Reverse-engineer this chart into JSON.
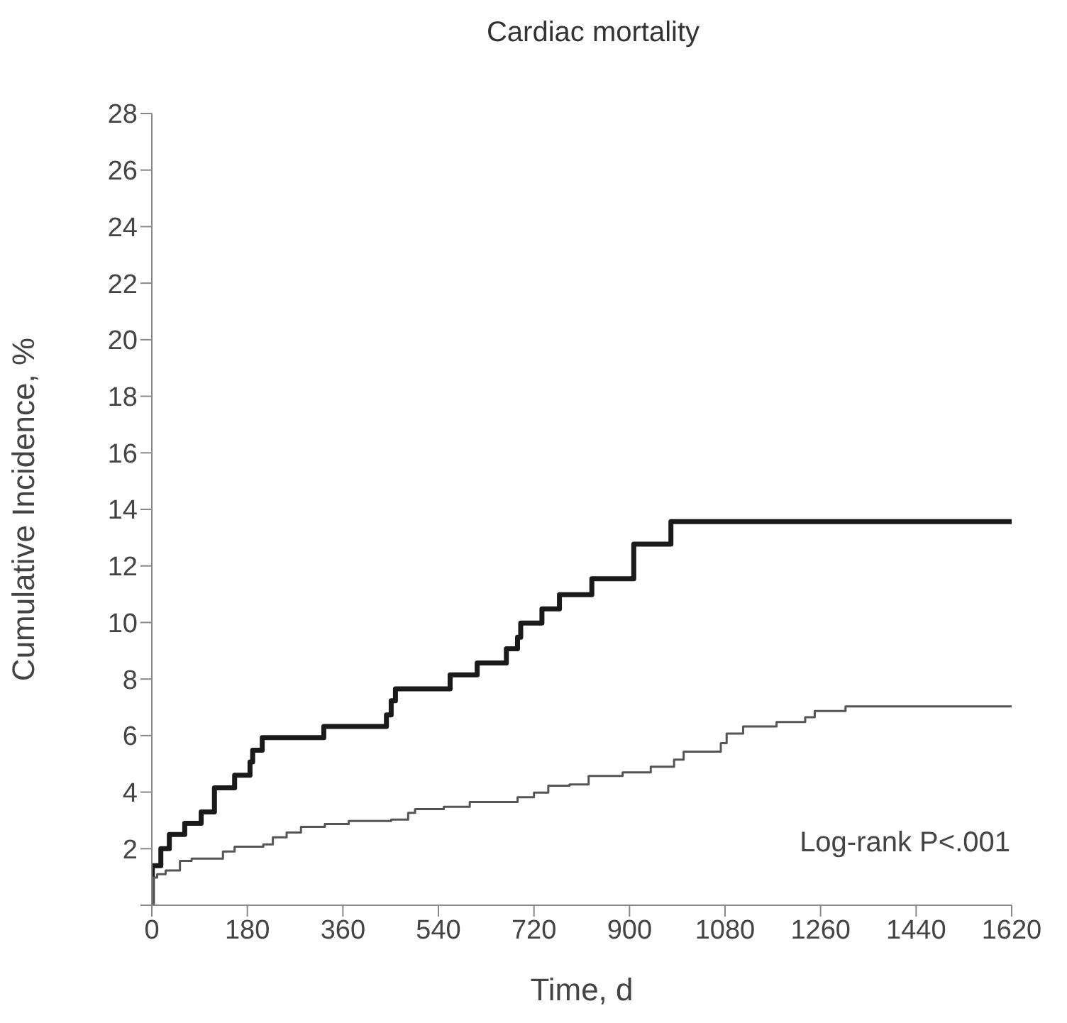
{
  "chart_data": {
    "type": "step",
    "title": "Cardiac mortality",
    "xlabel": "Time, d",
    "ylabel": "Cumulative Incidence, %",
    "xlim": [
      0,
      1620
    ],
    "xticks": [
      0,
      180,
      360,
      540,
      720,
      900,
      1080,
      1260,
      1440,
      1620
    ],
    "ylim": [
      0,
      28
    ],
    "yticks": [
      {
        "value": 0,
        "label": null
      },
      2,
      4,
      6,
      8,
      10,
      12,
      14,
      16,
      18,
      20,
      22,
      24,
      26,
      28
    ],
    "grid": false,
    "legend": false,
    "marker": "none",
    "annotations": [
      "Log-rank P<.001"
    ],
    "series": [
      {
        "color": "#1a1a1a",
        "x": [
          0,
          1,
          17,
          33,
          62,
          93,
          118,
          156,
          185,
          190,
          208,
          324,
          442,
          451,
          459,
          562,
          613,
          668,
          689,
          695,
          735,
          768,
          829,
          908,
          978,
          1620
        ],
        "values": [
          0,
          1.4,
          2.0,
          2.5,
          2.9,
          3.3,
          4.15,
          4.6,
          5.07,
          5.48,
          5.93,
          6.32,
          6.73,
          7.23,
          7.65,
          8.15,
          8.57,
          9.07,
          9.48,
          9.98,
          10.48,
          10.98,
          11.55,
          12.77,
          13.57,
          13.57
        ]
      },
      {
        "color": "#555555",
        "x": [
          0,
          3,
          10,
          26,
          53,
          75,
          134,
          156,
          210,
          228,
          254,
          281,
          326,
          371,
          451,
          483,
          496,
          550,
          599,
          689,
          720,
          747,
          787,
          823,
          887,
          940,
          984,
          1002,
          1072,
          1083,
          1114,
          1177,
          1231,
          1249,
          1307,
          1620
        ],
        "values": [
          0,
          0.98,
          1.1,
          1.23,
          1.57,
          1.65,
          1.9,
          2.07,
          2.15,
          2.4,
          2.57,
          2.77,
          2.87,
          2.98,
          3.03,
          3.27,
          3.4,
          3.48,
          3.65,
          3.82,
          3.98,
          4.23,
          4.27,
          4.57,
          4.7,
          4.9,
          5.15,
          5.43,
          5.73,
          6.07,
          6.32,
          6.48,
          6.65,
          6.87,
          7.03,
          7.03
        ]
      }
    ]
  }
}
